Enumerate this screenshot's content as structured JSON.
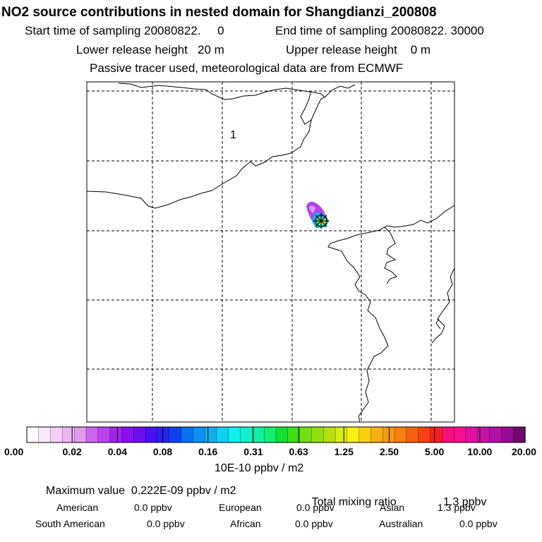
{
  "header": {
    "title": "NO2 source contributions in nested domain for Shangdianzi_200808",
    "start_label": "Start time of sampling 20080822.     0",
    "end_label": "End time of sampling 20080822. 30000",
    "lower_label": "Lower release height   20 m",
    "upper_label": "Upper release height    0 m",
    "tracer_note": "Passive tracer used, meteorological data are from ECMWF"
  },
  "map": {
    "region_label": "1",
    "coast_color": "#000000",
    "grid_color": "#000000"
  },
  "legend": {
    "ticks": [
      "0.00",
      "0.02",
      "0.04",
      "0.08",
      "0.16",
      "0.31",
      "0.63",
      "1.25",
      "2.50",
      "5.00",
      "10.00",
      "20.00"
    ],
    "colors": [
      "#ffffff",
      "#fbe7fb",
      "#f5cff7",
      "#edb6f3",
      "#e099ef",
      "#cc66ee",
      "#bb44ef",
      "#a522ef",
      "#8a10ef",
      "#6a10ef",
      "#4a10ef",
      "#2a20ef",
      "#1040ef",
      "#0a70ef",
      "#0a90ef",
      "#10b0ef",
      "#10d0ef",
      "#10f0ef",
      "#10f0cc",
      "#10f0a0",
      "#10f070",
      "#10e030",
      "#40e010",
      "#70e010",
      "#90e010",
      "#b8e010",
      "#d8ee10",
      "#f8f010",
      "#f8d010",
      "#f8b010",
      "#f89a10",
      "#f88010",
      "#f86010",
      "#f84010",
      "#f82020",
      "#f8107a",
      "#f81090",
      "#e010a0",
      "#c810a8",
      "#b010a8",
      "#980a98",
      "#70086e"
    ],
    "units": "10E-10 ppbv / m2"
  },
  "summary": {
    "max_label": "Maximum value  0.222E-09 ppbv / m2",
    "total_label": "Total mixing ratio",
    "total_value": "1.3 ppbv",
    "regions": [
      {
        "name": "American",
        "value": "0.0 ppbv"
      },
      {
        "name": "European",
        "value": "0.0 ppbv"
      },
      {
        "name": "Asian",
        "value": "1.3 ppbv"
      },
      {
        "name": "South American",
        "value": "0.0 ppbv"
      },
      {
        "name": "African",
        "value": "0.0 ppbv"
      },
      {
        "name": "Australian",
        "value": "0.0 ppbv"
      }
    ]
  }
}
